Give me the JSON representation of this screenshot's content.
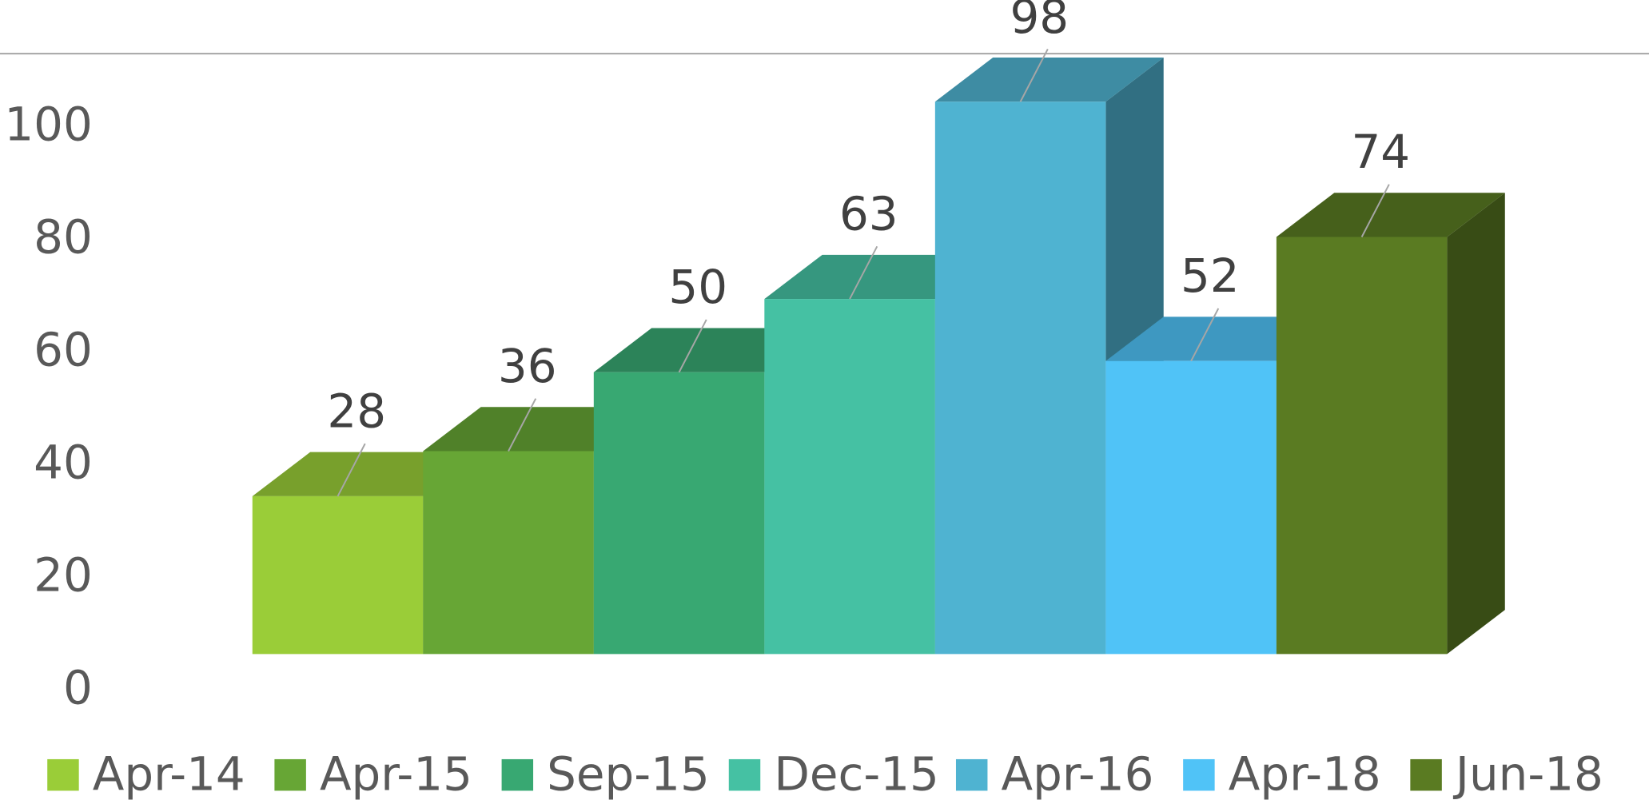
{
  "chart_data": {
    "type": "bar3d",
    "categories": [
      "Apr-14",
      "Apr-15",
      "Sep-15",
      "Dec-15",
      "Apr-16",
      "Apr-18",
      "Jun-18"
    ],
    "values": [
      28,
      36,
      50,
      63,
      98,
      52,
      74
    ],
    "colors": [
      "#9acd38",
      "#67a635",
      "#38a872",
      "#45c1a3",
      "#4fb3d1",
      "#50c3f7",
      "#5a7b22"
    ],
    "ylim": [
      0,
      100
    ],
    "yticks": [
      0,
      20,
      40,
      60,
      80,
      100
    ],
    "legend": "bottom"
  }
}
